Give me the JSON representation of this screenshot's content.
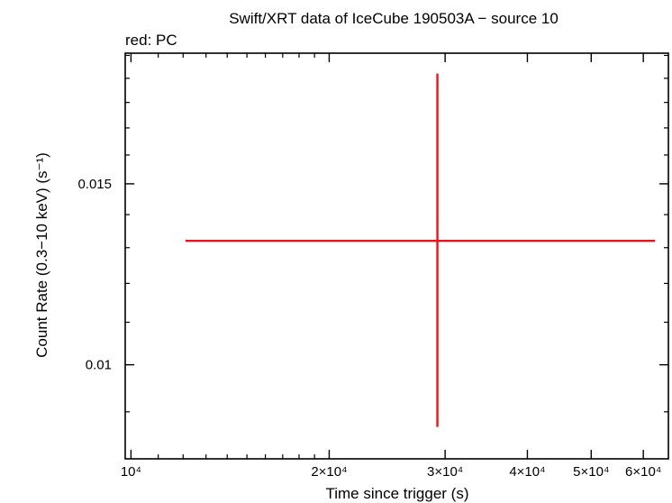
{
  "chart_data": {
    "type": "scatter",
    "title": "Swift/XRT data of IceCube 190503A − source 10",
    "subtitle": "red: PC",
    "xlabel": "Time since trigger (s)",
    "ylabel": "Count Rate (0.3−10 keV) (s⁻¹)",
    "x_scale": "log",
    "y_scale": "log",
    "xlim": [
      9800,
      65500
    ],
    "ylim": [
      0.0081,
      0.0201
    ],
    "x_ticks": [
      {
        "value": 10000,
        "label": "10⁴"
      },
      {
        "value": 20000,
        "label": "2×10⁴"
      },
      {
        "value": 30000,
        "label": "3×10⁴"
      },
      {
        "value": 40000,
        "label": "4×10⁴"
      },
      {
        "value": 50000,
        "label": "5×10⁴"
      },
      {
        "value": 60000,
        "label": "6×10⁴"
      }
    ],
    "y_ticks": [
      {
        "value": 0.01,
        "label": "0.01"
      },
      {
        "value": 0.015,
        "label": "0.015"
      }
    ],
    "series": [
      {
        "name": "PC",
        "color": "#e8141c",
        "points": [
          {
            "x": 29200,
            "x_low": 12100,
            "x_high": 62500,
            "y": 0.0132,
            "y_low": 0.0087,
            "y_high": 0.0192
          }
        ]
      }
    ],
    "grid": false,
    "legend": "none"
  }
}
